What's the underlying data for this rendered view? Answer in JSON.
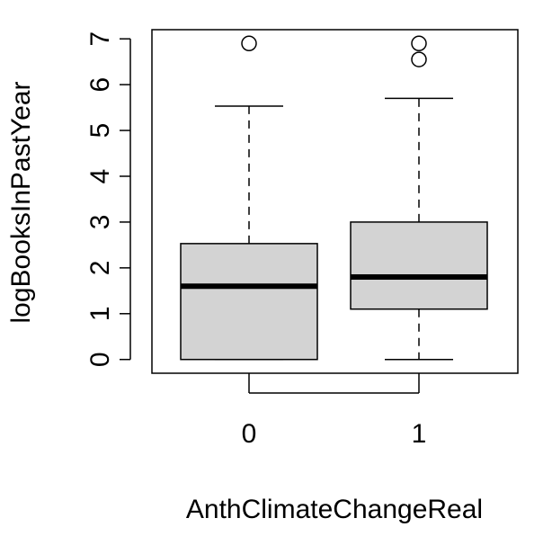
{
  "chart_data": {
    "type": "boxplot",
    "xlabel": "AnthClimateChangeReal",
    "ylabel": "logBooksInPastYear",
    "ylim": [
      -0.3,
      7.2
    ],
    "y_ticks": [
      "0",
      "1",
      "2",
      "3",
      "4",
      "5",
      "6",
      "7"
    ],
    "categories": [
      "0",
      "1"
    ],
    "grid": false,
    "colors": {
      "box_fill": "#d3d3d3",
      "stroke": "#000000"
    },
    "boxes": [
      {
        "category": "0",
        "whisker_low": 0,
        "q1": 0,
        "median": 1.6,
        "q3": 2.53,
        "whisker_high": 5.53,
        "outliers": [
          6.9
        ]
      },
      {
        "category": "1",
        "whisker_low": 0,
        "q1": 1.1,
        "median": 1.8,
        "q3": 3.0,
        "whisker_high": 5.7,
        "outliers": [
          6.55,
          6.9
        ]
      }
    ]
  }
}
